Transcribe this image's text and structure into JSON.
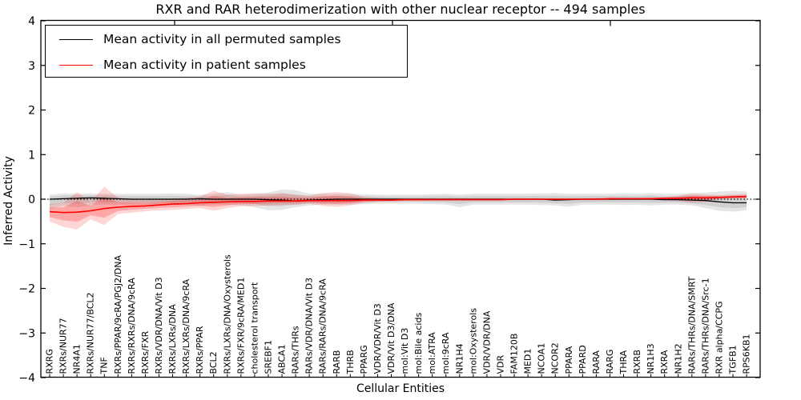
{
  "title": "RXR and RAR heterodimerization with other nuclear receptor -- 494 samples",
  "axes": {
    "xlabel": "Cellular Entities",
    "ylabel": "Inferred Activity",
    "ylim": [
      -4,
      4
    ],
    "yticks": [
      4,
      3,
      2,
      1,
      0,
      -1,
      -2,
      -3,
      -4
    ],
    "grid": false
  },
  "legend": {
    "position": "upper left",
    "entries": [
      {
        "label": "Mean activity in all permuted samples",
        "color": "#000000"
      },
      {
        "label": "Mean activity in patient samples",
        "color": "#ff0000"
      }
    ]
  },
  "colors": {
    "permuted_line": "#000000",
    "patient_line": "#ff0000",
    "permuted_band": "rgba(0,0,0,0.10)",
    "permuted_band_inner": "rgba(0,0,0,0.09)",
    "patient_band": "rgba(255,0,0,0.16)",
    "patient_band_inner": "rgba(255,0,0,0.22)",
    "zero_line": "#000000"
  },
  "chart_data": {
    "type": "line",
    "title": "RXR and RAR heterodimerization with other nuclear receptor -- 494 samples",
    "xlabel": "Cellular Entities",
    "ylabel": "Inferred Activity",
    "ylim": [
      -4,
      4
    ],
    "legend_position": "upper left",
    "grid": false,
    "zero_reference_line": 0,
    "categories": [
      "RXRG",
      "RXRs/NUR77",
      "NR4A1",
      "RXRs/NUR77/BCL2",
      "TNF",
      "RXRs/PPAR/9cRA/PGJ2/DNA",
      "RXRs/RXRs/DNA/9cRA",
      "RXRs/FXR",
      "RXRs/VDR/DNA/Vit D3",
      "RXRs/LXRs/DNA",
      "RXRs/LXRs/DNA/9cRA",
      "RXRs/PPAR",
      "BCL2",
      "RXRs/LXRs/DNA/Oxysterols",
      "RXRs/FXR/9cRA/MED1",
      "cholesterol transport",
      "SREBF1",
      "ABCA1",
      "RARs/THRs",
      "RARs/VDR/DNA/Vit D3",
      "RARs/RARs/DNA/9cRA",
      "RARB",
      "THRB",
      "PPARG",
      "VDR/VDR/Vit D3",
      "VDR/Vit D3/DNA",
      "mol:Vit D3",
      "mol:Bile acids",
      "mol:ATRA",
      "mol:9cRA",
      "NR1H4",
      "mol:Oxysterols",
      "VDR/VDR/DNA",
      "VDR",
      "FAM120B",
      "MED1",
      "NCOA1",
      "NCOR2",
      "PPARA",
      "PPARD",
      "RARA",
      "RARG",
      "THRA",
      "RXRB",
      "NR1H3",
      "RXRA",
      "NR1H2",
      "RARs/THRs/DNA/SMRT",
      "RARs/THRs/DNA/Src-1",
      "RXR alpha/CCPG",
      "TGFB1",
      "RPS6KB1"
    ],
    "series": [
      {
        "name": "Mean activity in all permuted samples",
        "color": "#000000",
        "mean": [
          0.0,
          0.01,
          0.02,
          0.03,
          0.02,
          0.01,
          0.0,
          0.0,
          0.0,
          0.0,
          0.0,
          0.01,
          0.0,
          0.0,
          0.0,
          0.0,
          -0.01,
          -0.02,
          -0.04,
          -0.02,
          -0.01,
          0.0,
          0.0,
          0.0,
          0.0,
          0.0,
          0.0,
          0.0,
          0.0,
          0.0,
          0.0,
          0.0,
          0.0,
          0.0,
          0.0,
          0.0,
          0.0,
          -0.02,
          -0.01,
          0.0,
          0.0,
          0.0,
          0.0,
          0.0,
          0.0,
          -0.01,
          -0.01,
          -0.02,
          -0.03,
          -0.06,
          -0.08,
          -0.08
        ],
        "band_hi": [
          0.1,
          0.13,
          0.12,
          0.13,
          0.12,
          0.12,
          0.12,
          0.12,
          0.12,
          0.13,
          0.12,
          0.1,
          0.12,
          0.16,
          0.1,
          0.12,
          0.15,
          0.22,
          0.2,
          0.12,
          0.12,
          0.12,
          0.12,
          0.11,
          0.1,
          0.1,
          0.1,
          0.1,
          0.11,
          0.12,
          0.1,
          0.12,
          0.12,
          0.12,
          0.12,
          0.12,
          0.13,
          0.14,
          0.12,
          0.12,
          0.12,
          0.12,
          0.13,
          0.12,
          0.14,
          0.12,
          0.12,
          0.14,
          0.15,
          0.17,
          0.19,
          0.17
        ],
        "band_lo": [
          -0.22,
          -0.15,
          -0.18,
          -0.13,
          -0.12,
          -0.12,
          -0.12,
          -0.12,
          -0.12,
          -0.13,
          -0.12,
          -0.15,
          -0.12,
          -0.12,
          -0.14,
          -0.18,
          -0.25,
          -0.24,
          -0.18,
          -0.14,
          -0.12,
          -0.12,
          -0.12,
          -0.11,
          -0.1,
          -0.1,
          -0.1,
          -0.1,
          -0.11,
          -0.12,
          -0.18,
          -0.12,
          -0.12,
          -0.12,
          -0.12,
          -0.12,
          -0.13,
          -0.14,
          -0.17,
          -0.12,
          -0.12,
          -0.12,
          -0.13,
          -0.12,
          -0.14,
          -0.12,
          -0.12,
          -0.14,
          -0.2,
          -0.26,
          -0.28,
          -0.25
        ]
      },
      {
        "name": "Mean activity in patient samples",
        "color": "#ff0000",
        "mean": [
          -0.28,
          -0.3,
          -0.29,
          -0.26,
          -0.21,
          -0.18,
          -0.16,
          -0.15,
          -0.13,
          -0.11,
          -0.1,
          -0.08,
          -0.07,
          -0.06,
          -0.05,
          -0.05,
          -0.04,
          -0.04,
          -0.04,
          -0.03,
          -0.03,
          -0.03,
          -0.03,
          -0.02,
          -0.02,
          -0.02,
          -0.01,
          -0.01,
          -0.01,
          -0.01,
          -0.01,
          -0.01,
          -0.01,
          -0.01,
          0.0,
          0.0,
          0.0,
          0.0,
          0.0,
          0.0,
          0.0,
          0.01,
          0.01,
          0.01,
          0.01,
          0.02,
          0.02,
          0.03,
          0.03,
          0.04,
          0.05,
          0.06
        ],
        "band_hi": [
          -0.11,
          -0.08,
          0.16,
          -0.05,
          0.28,
          0.03,
          0.0,
          -0.02,
          0.0,
          0.02,
          0.03,
          0.06,
          0.19,
          0.1,
          0.12,
          0.13,
          0.12,
          0.14,
          0.1,
          0.08,
          0.14,
          0.16,
          0.13,
          0.05,
          0.03,
          0.02,
          0.02,
          0.02,
          0.02,
          0.02,
          0.02,
          0.02,
          0.02,
          0.02,
          0.02,
          0.02,
          0.02,
          0.02,
          0.02,
          0.02,
          0.03,
          0.03,
          0.03,
          0.03,
          0.04,
          0.05,
          0.08,
          0.12,
          0.1,
          0.09,
          0.1,
          0.12
        ],
        "band_lo": [
          -0.5,
          -0.62,
          -0.68,
          -0.45,
          -0.58,
          -0.33,
          -0.3,
          -0.27,
          -0.25,
          -0.24,
          -0.22,
          -0.2,
          -0.26,
          -0.2,
          -0.16,
          -0.15,
          -0.14,
          -0.13,
          -0.12,
          -0.1,
          -0.15,
          -0.17,
          -0.14,
          -0.08,
          -0.06,
          -0.05,
          -0.04,
          -0.04,
          -0.03,
          -0.03,
          -0.03,
          -0.03,
          -0.03,
          -0.03,
          -0.02,
          -0.02,
          -0.02,
          -0.02,
          -0.02,
          -0.02,
          -0.02,
          -0.02,
          -0.01,
          -0.01,
          -0.01,
          -0.01,
          -0.04,
          -0.08,
          -0.06,
          0.0,
          0.01,
          0.02
        ]
      }
    ]
  }
}
